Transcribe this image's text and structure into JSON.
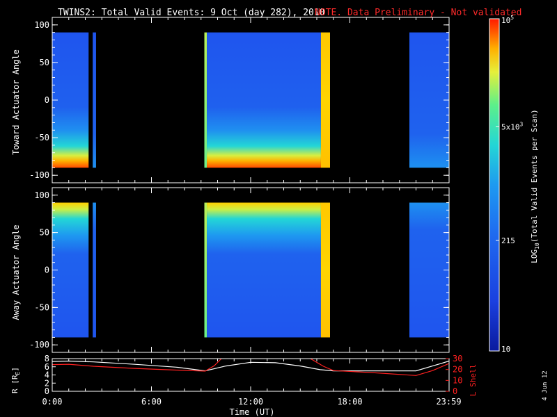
{
  "header": {
    "title": "TWINS2: Total Valid Events:  9 Oct (day 282), 2010",
    "note": "NOTE. Data Preliminary - Not validated"
  },
  "footer": {
    "date_stamp": "4 Jun 12"
  },
  "colors": {
    "background": "#000000",
    "axes": "#ffffff",
    "note": "#ff2a2a",
    "l_shell_line": "#ff2020",
    "r_line": "#ffffff",
    "colormap": [
      "#0a1a9e",
      "#1f55ee",
      "#1e9af0",
      "#23d6d6",
      "#5cf08a",
      "#e6ef3a",
      "#ffb000",
      "#ff5a00",
      "#ff1a00"
    ]
  },
  "chart_data": [
    {
      "type": "heatmap",
      "panel": "top",
      "ylabel": "Toward Actuator Angle",
      "ylim": [
        -110,
        110
      ],
      "y_ticks": [
        "-100",
        "-50",
        "0",
        "50",
        "100"
      ],
      "xlim_hours": [
        0,
        24
      ],
      "data_y_range": [
        -90,
        90
      ],
      "blocks": [
        {
          "t0": 0.0,
          "t1": 2.2,
          "level": "blue",
          "low_angle_enhancement": "red"
        },
        {
          "t0": 2.45,
          "t1": 2.65,
          "level": "blue"
        },
        {
          "t0": 9.2,
          "t1": 9.35,
          "level": "yellow-green"
        },
        {
          "t0": 9.35,
          "t1": 16.25,
          "level": "blue",
          "low_angle_enhancement": "red"
        },
        {
          "t0": 16.25,
          "t1": 16.8,
          "level": "yellow"
        },
        {
          "t0": 21.6,
          "t1": 24.0,
          "level": "blue"
        }
      ]
    },
    {
      "type": "heatmap",
      "panel": "middle",
      "ylabel": "Away Actuator Angle",
      "ylim": [
        -110,
        110
      ],
      "y_ticks": [
        "-100",
        "-50",
        "0",
        "50",
        "100"
      ],
      "xlim_hours": [
        0,
        24
      ],
      "data_y_range": [
        -90,
        90
      ],
      "blocks": [
        {
          "t0": 0.0,
          "t1": 2.2,
          "level": "blue",
          "high_angle_enhancement": "yellow"
        },
        {
          "t0": 2.45,
          "t1": 2.65,
          "level": "blue"
        },
        {
          "t0": 9.2,
          "t1": 9.35,
          "level": "yellow-green"
        },
        {
          "t0": 9.35,
          "t1": 16.25,
          "level": "blue",
          "high_angle_enhancement": "yellow"
        },
        {
          "t0": 16.25,
          "t1": 16.8,
          "level": "yellow"
        },
        {
          "t0": 21.6,
          "t1": 24.0,
          "level": "blue"
        }
      ]
    },
    {
      "type": "line",
      "panel": "bottom",
      "xlabel": "Time (UT)",
      "x_ticks": [
        "0:00",
        "6:00",
        "12:00",
        "18:00",
        "23:59"
      ],
      "x_tick_hours": [
        0,
        6,
        12,
        18,
        23.98
      ],
      "left_axis": {
        "label_main": "R [R",
        "label_sub": "E",
        "label_tail": "]",
        "ylim": [
          0,
          8
        ],
        "ticks": [
          "0",
          "2",
          "4",
          "6",
          "8"
        ]
      },
      "right_axis": {
        "label": "L Shell",
        "ylim": [
          0,
          30
        ],
        "ticks": [
          "0",
          "10",
          "20",
          "30"
        ]
      },
      "series": [
        {
          "name": "R [R",
          "axis": "left",
          "x": [
            0,
            1.0,
            2.5,
            5.0,
            7.5,
            9.25,
            10.5,
            12.0,
            13.5,
            15.0,
            16.2,
            17.0,
            19.5,
            22.0,
            23.0,
            24.0
          ],
          "y": [
            7.3,
            7.4,
            7.2,
            6.6,
            5.9,
            5.0,
            6.2,
            7.1,
            7.0,
            6.2,
            5.3,
            5.0,
            5.0,
            5.0,
            6.2,
            7.4
          ]
        },
        {
          "name": "L Shell",
          "axis": "right",
          "x": [
            0,
            1.0,
            2.5,
            5.0,
            7.5,
            9.25,
            9.8,
            10.3,
            15.5,
            16.4,
            17.0,
            19.5,
            22.0,
            23.0,
            24.0
          ],
          "y": [
            24.5,
            24.8,
            23.0,
            21.0,
            19.5,
            18.5,
            23.5,
            31.0,
            31.0,
            23.0,
            19.0,
            17.0,
            14.5,
            19.0,
            25.5
          ]
        }
      ]
    },
    {
      "type": "colorbar",
      "label_main": "LOG",
      "label_sub": "10",
      "label_tail": "(Total Valid  Events per Scan)",
      "ticks": [
        {
          "value": 10,
          "label": "10"
        },
        {
          "value": 215,
          "label": "215"
        },
        {
          "value": 5000,
          "label_base": "5x10",
          "label_exp": "3"
        },
        {
          "value": 100000,
          "label_base": "10",
          "label_exp": "5"
        }
      ],
      "range": [
        10,
        100000
      ]
    }
  ]
}
